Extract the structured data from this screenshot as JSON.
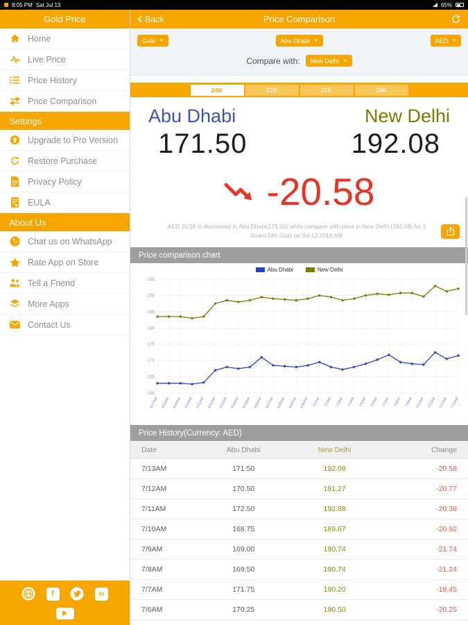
{
  "status_bar": {
    "time": "8:05 PM",
    "date": "Sat Jul 13",
    "battery_percent": "65%"
  },
  "sidebar": {
    "app_title": "Gold Price",
    "main_items": [
      {
        "label": "Home",
        "icon": "home-icon"
      },
      {
        "label": "Live Price",
        "icon": "live-price-icon"
      },
      {
        "label": "Price History",
        "icon": "price-history-icon"
      },
      {
        "label": "Price Comparison",
        "icon": "price-comparison-icon"
      }
    ],
    "settings_header": "Settings",
    "settings_items": [
      {
        "label": "Upgrade to Pro Version",
        "icon": "upgrade-icon"
      },
      {
        "label": "Restore Purchase",
        "icon": "restore-icon"
      },
      {
        "label": "Privacy Policy",
        "icon": "privacy-policy-icon"
      },
      {
        "label": "EULA",
        "icon": "eula-icon"
      }
    ],
    "about_header": "About Us",
    "about_items": [
      {
        "label": "Chat us on WhatsApp",
        "icon": "whatsapp-icon"
      },
      {
        "label": "Rate App on Store",
        "icon": "star-icon"
      },
      {
        "label": "Tell a Friend",
        "icon": "friends-icon"
      },
      {
        "label": "More Apps",
        "icon": "apps-icon"
      },
      {
        "label": "Contact Us",
        "icon": "mail-icon"
      }
    ],
    "social": [
      "website",
      "facebook",
      "twitter",
      "linkedin",
      "youtube"
    ],
    "facebook_glyph": "f",
    "linkedin_glyph": "in"
  },
  "nav": {
    "back_label": "Back",
    "title": "Price Comparison"
  },
  "filters": {
    "metal": "Gold",
    "city": "Abu Dhabi",
    "currency": "AED",
    "compare_label": "Compare with:",
    "compare_city": "New Delhi"
  },
  "tabs": {
    "items": [
      "24K",
      "22K",
      "21K",
      "18K"
    ],
    "selected": "24K"
  },
  "comparison": {
    "city_a": "Abu Dhabi",
    "city_b": "New Delhi",
    "price_a": "171.50",
    "price_b": "192.08",
    "difference": "-20.58",
    "description": "AED 20.58 is decreased in Abu Dhabi(171.50) while compare with price in New Delhi (192.08) for 1 Gram 24K Gold on Jul 13,2019 AM"
  },
  "sections": {
    "chart_title": "Price comparison chart",
    "history_title": "Price History(Currency: AED)"
  },
  "chart_data": {
    "type": "line",
    "x": [
      "6/17AM",
      "6/18AM",
      "6/19AM",
      "6/20AM",
      "6/21AM",
      "6/22AM",
      "6/23AM",
      "6/24AM",
      "6/25AM",
      "6/26AM",
      "6/27AM",
      "6/28AM",
      "6/29AM",
      "6/30AM",
      "7/1AM",
      "7/2AM",
      "7/3AM",
      "7/4AM",
      "7/5AM",
      "7/6AM",
      "7/7AM",
      "7/8AM",
      "7/9AM",
      "7/10AM",
      "7/11AM",
      "7/12AM",
      "7/13AM"
    ],
    "series": [
      {
        "name": "Abu Dhabi",
        "color": "#2743D0",
        "values": [
          163.0,
          163.0,
          163.0,
          162.75,
          163.25,
          167.0,
          168.0,
          167.5,
          168.0,
          171.0,
          168.5,
          168.25,
          168.0,
          168.5,
          169.5,
          168.0,
          167.25,
          168.0,
          169.0,
          170.25,
          171.75,
          169.5,
          169.0,
          168.75,
          172.5,
          170.5,
          171.5
        ]
      },
      {
        "name": "New Delhi",
        "color": "#7C7A00",
        "values": [
          183.5,
          183.5,
          183.5,
          183.0,
          183.5,
          187.5,
          188.5,
          188.0,
          188.5,
          189.5,
          189.0,
          188.75,
          188.5,
          189.0,
          190.0,
          189.5,
          188.5,
          189.0,
          190.0,
          190.5,
          190.2,
          190.74,
          190.74,
          189.67,
          192.88,
          191.27,
          192.08
        ]
      }
    ],
    "ylim": [
      160,
      195
    ],
    "ytick": 5,
    "xlabel": "",
    "ylabel": "",
    "grid": true,
    "legend_position": "top"
  },
  "history": {
    "columns": [
      "Date",
      "Abu Dhabi",
      "New Delhi",
      "Change"
    ],
    "rows": [
      [
        "7/13AM",
        "171.50",
        "192.08",
        "-20.58"
      ],
      [
        "7/12AM",
        "170.50",
        "191.27",
        "-20.77"
      ],
      [
        "7/11AM",
        "172.50",
        "192.88",
        "-20.38"
      ],
      [
        "7/10AM",
        "168.75",
        "189.67",
        "-20.92"
      ],
      [
        "7/9AM",
        "169.00",
        "190.74",
        "-21.74"
      ],
      [
        "7/8AM",
        "169.50",
        "190.74",
        "-21.24"
      ],
      [
        "7/7AM",
        "171.75",
        "190.20",
        "-18.45"
      ],
      [
        "7/6AM",
        "170.25",
        "190.50",
        "-20.25"
      ]
    ]
  },
  "colors": {
    "accent": "#F7A600",
    "city_a_color": "#3F51B5",
    "city_b_color": "#7C7A00",
    "negative": "#EA3325",
    "section_header_bg": "#9E9E9E"
  }
}
